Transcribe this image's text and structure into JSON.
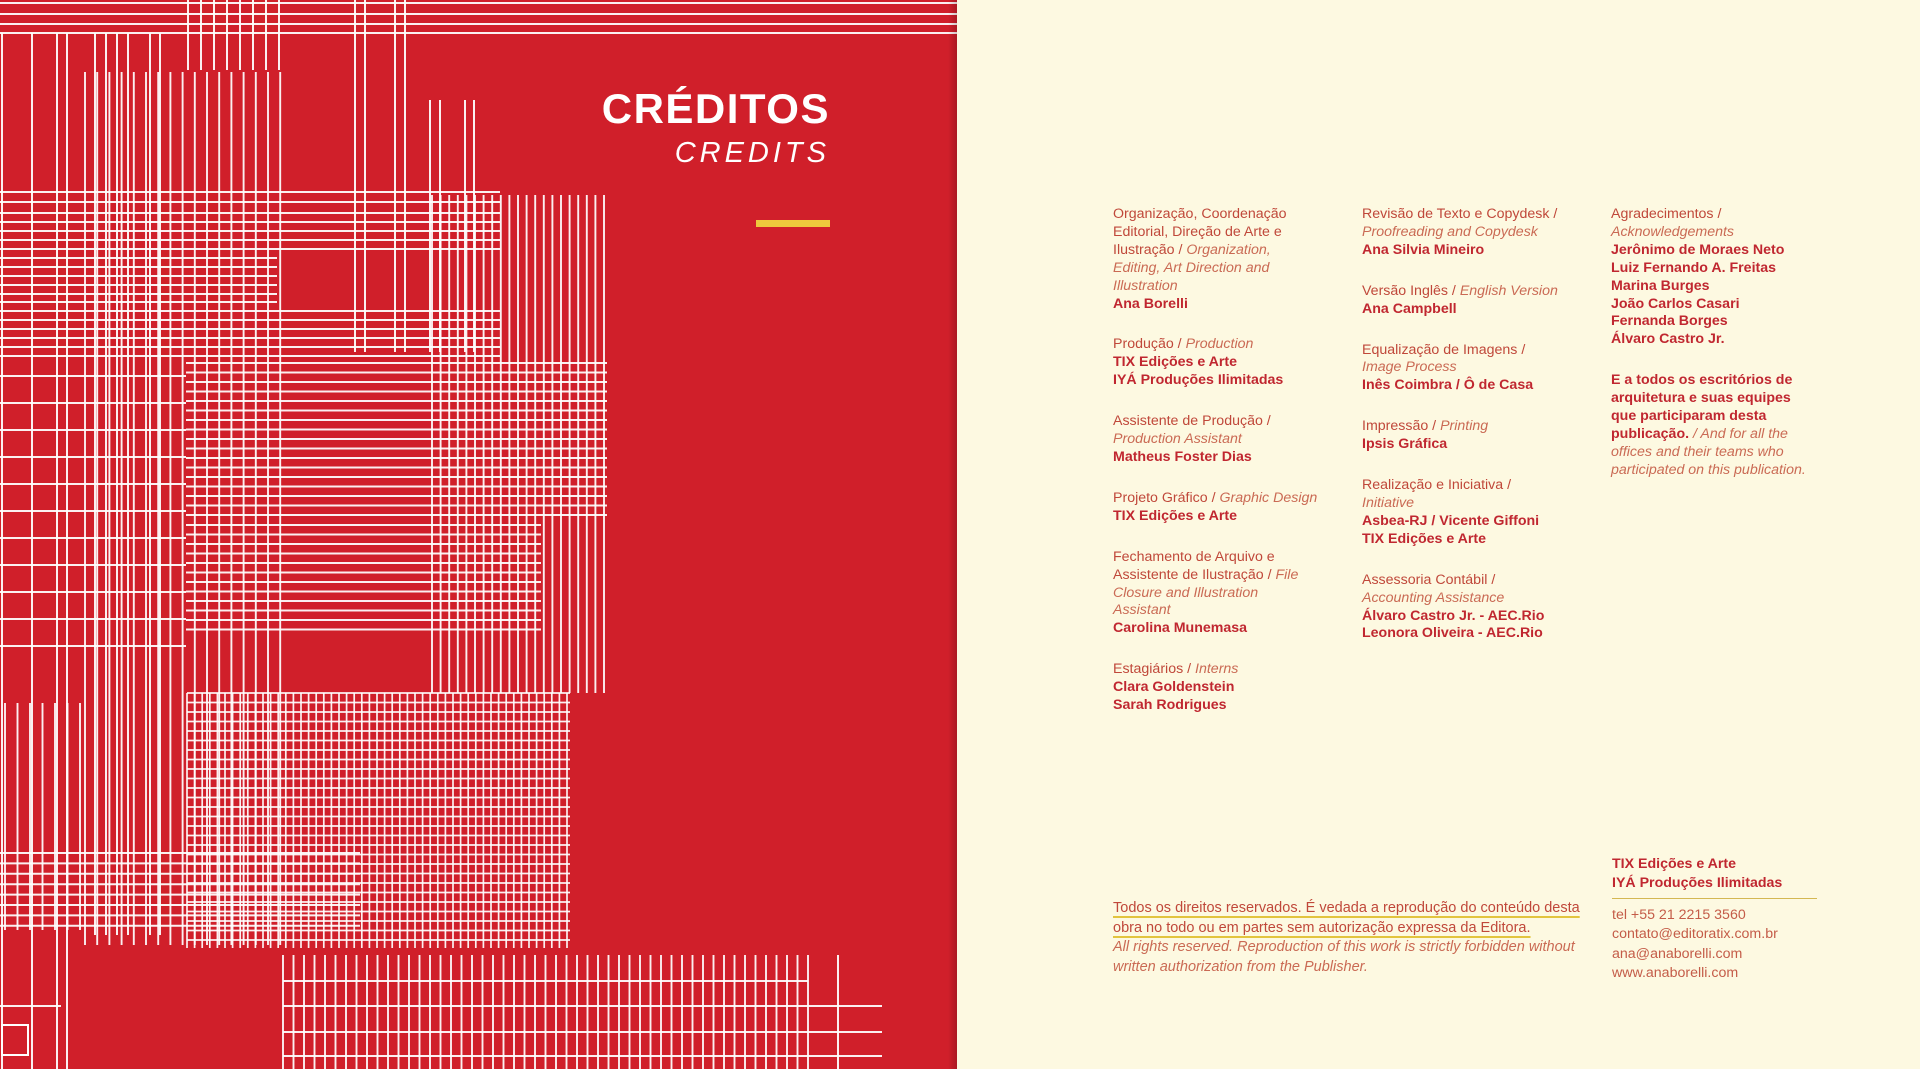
{
  "panel": {
    "title_pt": "CRÉDITOS",
    "title_en": "CREDITS"
  },
  "colors": {
    "red_background": "#d01f2a",
    "cream_background": "#fdf9e1",
    "line_white": "#ffffff",
    "gold_accent": "#eec83d",
    "text_red": "#c0483a",
    "text_red_italic": "#ca6a54",
    "text_red_bold": "#c02730"
  },
  "credits": {
    "columns": [
      {
        "sections": [
          {
            "pt": "Organização, Coordenação Editorial, Direção de Arte e Ilustração /",
            "en": "Organization, Editing, Art Direction and Illustration",
            "names": [
              "Ana Borelli"
            ]
          },
          {
            "pt": "Produção /",
            "en": "Production",
            "names": [
              "TIX Edições e Arte",
              "IYÁ Produções Ilimitadas"
            ]
          },
          {
            "pt": "Assistente de Produção /",
            "en": "Production Assistant",
            "names": [
              "Matheus Foster Dias"
            ]
          },
          {
            "pt": "Projeto Gráfico /",
            "en": "Graphic Design",
            "names": [
              "TIX Edições e Arte"
            ]
          },
          {
            "pt": "Fechamento de Arquivo e Assistente de Ilustração /",
            "en": "File Closure and Illustration Assistant",
            "names": [
              "Carolina Munemasa"
            ]
          },
          {
            "pt": "Estagiários /",
            "en": "Interns",
            "names": [
              "Clara Goldenstein",
              "Sarah Rodrigues"
            ]
          }
        ]
      },
      {
        "sections": [
          {
            "pt": "Revisão de Texto e Copydesk /",
            "en": "Proofreading and Copydesk",
            "names": [
              "Ana Silvia Mineiro"
            ]
          },
          {
            "pt": "Versão Inglês /",
            "en": "English Version",
            "names": [
              "Ana Campbell"
            ]
          },
          {
            "pt": "Equalização de Imagens /",
            "en": "Image Process",
            "names": [
              "Inês Coimbra / Ô de Casa"
            ]
          },
          {
            "pt": "Impressão /",
            "en": "Printing",
            "names": [
              "Ipsis Gráfica"
            ]
          },
          {
            "pt": "Realização e Iniciativa /",
            "en": "Initiative",
            "names": [
              "Asbea-RJ / Vicente Giffoni",
              "TIX Edições e Arte"
            ]
          },
          {
            "pt": "Assessoria Contábil /",
            "en": "Accounting Assistance",
            "names": [
              "Álvaro Castro Jr. - AEC.Rio",
              "Leonora Oliveira - AEC.Rio"
            ]
          }
        ]
      },
      {
        "sections": [
          {
            "pt": "Agradecimentos /",
            "en": "Acknowledgements",
            "names": [
              "Jerônimo de Moraes Neto",
              "Luiz Fernando A. Freitas",
              "Marina Burges",
              "João Carlos Casari",
              "Fernanda Borges",
              "Álvaro Castro Jr."
            ]
          },
          {
            "bold_note": "E a todos os escritórios de arquitetura e suas equipes que participaram desta publicação.",
            "italic_note": "/ And for all the offices and their teams who participated on this publication."
          }
        ]
      }
    ]
  },
  "rights": {
    "pt": "Todos os direitos reservados. É vedada a reprodução do conteúdo desta obra no todo ou em partes sem autorização expressa da Editora.",
    "en": "All rights reserved. Reproduction of this work is strictly forbidden without written authorization from the Publisher."
  },
  "contact": {
    "org": [
      "TIX Edições e Arte",
      "IYÁ Produções Ilimitadas"
    ],
    "lines": [
      "tel +55 21 2215 3560",
      "contato@editoratix.com.br",
      "ana@anaborelli.com",
      "www.anaborelli.com"
    ]
  }
}
